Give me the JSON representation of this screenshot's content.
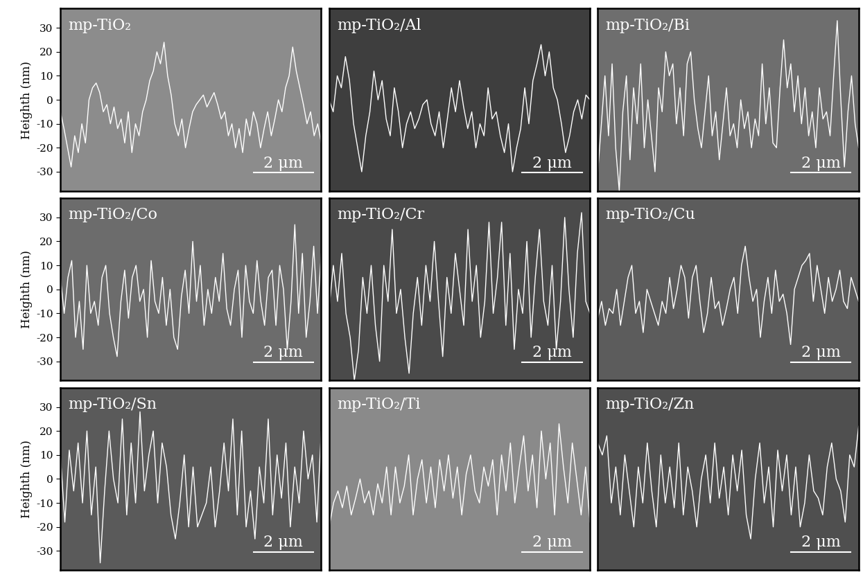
{
  "chart_data": [
    {
      "type": "line",
      "title": "mp-TiO₂",
      "y_label": "Heighth (nm)",
      "color": "#ffffff",
      "annotations": [
        "2 μm"
      ],
      "ylim": [
        -38,
        38
      ],
      "yticks": [
        -30,
        -20,
        -10,
        0,
        10,
        20,
        30
      ],
      "tick_labels": "y",
      "values": [
        -5,
        -12,
        -20,
        -28,
        -15,
        -22,
        -10,
        -18,
        0,
        5,
        7,
        3,
        -5,
        -2,
        -10,
        -3,
        -12,
        -8,
        -18,
        -5,
        -22,
        -10,
        -15,
        -5,
        0,
        8,
        12,
        20,
        15,
        24,
        10,
        2,
        -10,
        -15,
        -8,
        -20,
        -12,
        -5,
        -2,
        0,
        2,
        -3,
        0,
        3,
        -2,
        -8,
        -5,
        -15,
        -10,
        -20,
        -12,
        -22,
        -8,
        -15,
        -5,
        -10,
        -20,
        -12,
        -5,
        -15,
        -8,
        0,
        -5,
        5,
        10,
        22,
        12,
        5,
        -2,
        -10,
        -5,
        -15,
        -10,
        -18
      ]
    },
    {
      "type": "line",
      "title": "mp-TiO₂/Al",
      "color": "#ffffff",
      "annotations": [
        "2 μm"
      ],
      "ylim": [
        -38,
        38
      ],
      "tick_labels": false,
      "values": [
        0,
        -5,
        10,
        5,
        18,
        8,
        -10,
        -20,
        -30,
        -15,
        -5,
        12,
        0,
        8,
        -8,
        -15,
        5,
        -5,
        -20,
        -10,
        -5,
        -12,
        -8,
        -2,
        0,
        -10,
        -15,
        -5,
        -20,
        -8,
        5,
        -5,
        8,
        -3,
        -12,
        -5,
        -20,
        -10,
        -15,
        5,
        -8,
        -5,
        -15,
        -22,
        -10,
        -30,
        -20,
        -12,
        5,
        -10,
        8,
        15,
        23,
        10,
        20,
        5,
        0,
        -10,
        -22,
        -15,
        -5,
        0,
        -8,
        2,
        0
      ]
    },
    {
      "type": "line",
      "title": "mp-TiO₂/Bi",
      "color": "#ffffff",
      "annotations": [
        "2 μm"
      ],
      "ylim": [
        -38,
        38
      ],
      "tick_labels": false,
      "values": [
        -30,
        -10,
        10,
        -15,
        15,
        -20,
        -38,
        -5,
        10,
        -25,
        5,
        -10,
        15,
        -20,
        0,
        -15,
        -30,
        5,
        -5,
        20,
        10,
        15,
        -10,
        5,
        -15,
        15,
        20,
        0,
        -12,
        -20,
        -5,
        10,
        -15,
        -5,
        -25,
        -10,
        5,
        -15,
        -10,
        -20,
        0,
        -12,
        -5,
        -20,
        -8,
        -15,
        15,
        -10,
        5,
        -18,
        -20,
        5,
        25,
        5,
        15,
        -5,
        10,
        -10,
        5,
        -15,
        -5,
        -20,
        5,
        -8,
        -5,
        -15,
        10,
        33,
        0,
        -28,
        -5,
        10,
        -10,
        -20
      ]
    },
    {
      "type": "line",
      "title": "mp-TiO₂/Co",
      "y_label": "Heighth (nm)",
      "color": "#ffffff",
      "annotations": [
        "2 μm"
      ],
      "ylim": [
        -38,
        38
      ],
      "yticks": [
        -30,
        -20,
        -10,
        0,
        10,
        20,
        30
      ],
      "tick_labels": "y",
      "values": [
        5,
        -10,
        5,
        12,
        -20,
        -5,
        -25,
        10,
        -10,
        -5,
        -15,
        5,
        10,
        -10,
        -20,
        -28,
        -5,
        8,
        -12,
        5,
        10,
        -5,
        0,
        -20,
        12,
        -5,
        -10,
        5,
        -15,
        0,
        -20,
        -25,
        -3,
        8,
        -10,
        20,
        -5,
        10,
        -15,
        0,
        -10,
        5,
        -5,
        15,
        -8,
        -15,
        0,
        8,
        -20,
        10,
        -5,
        -10,
        12,
        -5,
        -15,
        5,
        8,
        -15,
        10,
        0,
        -25,
        -5,
        27,
        -10,
        15,
        -20,
        -5,
        18,
        -10,
        15
      ]
    },
    {
      "type": "line",
      "title": "mp-TiO₂/Cr",
      "color": "#ffffff",
      "annotations": [
        "2 μm"
      ],
      "ylim": [
        -38,
        38
      ],
      "tick_labels": false,
      "values": [
        -8,
        10,
        -5,
        15,
        -10,
        -20,
        -38,
        -25,
        5,
        -10,
        10,
        -15,
        -30,
        10,
        -5,
        25,
        -10,
        0,
        -20,
        -35,
        -10,
        5,
        -15,
        10,
        -5,
        20,
        -5,
        -28,
        5,
        -10,
        15,
        0,
        -15,
        25,
        -5,
        10,
        -20,
        -5,
        28,
        -10,
        5,
        28,
        -15,
        15,
        -25,
        0,
        -10,
        20,
        -20,
        5,
        25,
        -5,
        -15,
        10,
        -25,
        -5,
        30,
        0,
        -20,
        15,
        32,
        -5,
        -10
      ]
    },
    {
      "type": "line",
      "title": "mp-TiO₂/Cu",
      "color": "#ffffff",
      "annotations": [
        "2 μm"
      ],
      "ylim": [
        -38,
        38
      ],
      "tick_labels": false,
      "values": [
        -12,
        -5,
        -15,
        -8,
        -10,
        0,
        -15,
        -5,
        5,
        10,
        -10,
        -5,
        -18,
        0,
        -5,
        -10,
        -15,
        -5,
        -10,
        5,
        -8,
        0,
        10,
        5,
        -12,
        5,
        10,
        -5,
        -18,
        -10,
        5,
        -8,
        -5,
        -15,
        -8,
        0,
        5,
        -10,
        10,
        18,
        5,
        -5,
        0,
        -20,
        -5,
        5,
        -10,
        8,
        -5,
        -2,
        -10,
        -23,
        0,
        5,
        10,
        12,
        15,
        -5,
        10,
        0,
        -10,
        5,
        -5,
        0,
        8,
        -5,
        -8,
        5,
        0,
        -5
      ]
    },
    {
      "type": "line",
      "title": "mp-TiO₂/Sn",
      "y_label": "Heighth (nm)",
      "color": "#ffffff",
      "annotations": [
        "2 μm"
      ],
      "ylim": [
        -38,
        38
      ],
      "yticks": [
        -30,
        -20,
        -10,
        0,
        10,
        20,
        30
      ],
      "tick_labels": "y",
      "values": [
        10,
        -18,
        12,
        -5,
        15,
        -10,
        20,
        -15,
        5,
        -35,
        -5,
        20,
        0,
        -10,
        25,
        -15,
        15,
        -10,
        28,
        -5,
        10,
        20,
        -10,
        15,
        5,
        -15,
        -25,
        -10,
        10,
        -20,
        5,
        -20,
        -15,
        -10,
        5,
        -20,
        -5,
        15,
        -5,
        25,
        -15,
        20,
        -20,
        -5,
        -25,
        5,
        -10,
        25,
        -15,
        10,
        -8,
        15,
        -20,
        5,
        -10,
        20,
        0,
        10,
        -18,
        20
      ]
    },
    {
      "type": "line",
      "title": "mp-TiO₂/Ti",
      "color": "#ffffff",
      "annotations": [
        "2 μm"
      ],
      "ylim": [
        -38,
        38
      ],
      "tick_labels": false,
      "values": [
        -20,
        -10,
        -5,
        -12,
        -3,
        -15,
        -8,
        0,
        -10,
        -5,
        -15,
        -2,
        -10,
        5,
        -15,
        5,
        -10,
        -3,
        10,
        -15,
        0,
        8,
        -10,
        5,
        -12,
        8,
        -5,
        10,
        -8,
        5,
        -15,
        2,
        10,
        -5,
        -10,
        5,
        -3,
        8,
        -15,
        10,
        -5,
        15,
        -10,
        5,
        18,
        -5,
        10,
        -12,
        20,
        0,
        15,
        -15,
        23,
        5,
        -10,
        15,
        0,
        -15,
        5,
        -18
      ]
    },
    {
      "type": "line",
      "title": "mp-TiO₂/Zn",
      "color": "#ffffff",
      "annotations": [
        "2 μm"
      ],
      "ylim": [
        -38,
        38
      ],
      "tick_labels": false,
      "values": [
        15,
        10,
        18,
        -10,
        5,
        -15,
        10,
        -5,
        -20,
        5,
        -10,
        15,
        -5,
        -20,
        10,
        -10,
        5,
        -12,
        15,
        -15,
        5,
        -5,
        -20,
        0,
        10,
        -10,
        15,
        -8,
        5,
        -15,
        10,
        -5,
        12,
        -15,
        -25,
        0,
        15,
        -10,
        5,
        -20,
        12,
        -5,
        10,
        -15,
        5,
        -20,
        -10,
        10,
        -5,
        -8,
        -15,
        5,
        15,
        0,
        -5,
        -18,
        10,
        5,
        22
      ]
    }
  ]
}
